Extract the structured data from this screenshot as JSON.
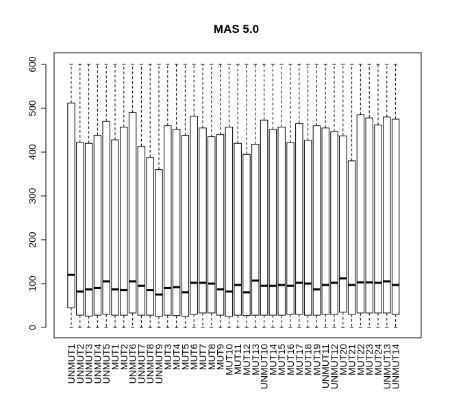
{
  "chart_data": {
    "type": "boxplot",
    "title": "MAS 5.0",
    "xlabel": "",
    "ylabel": "",
    "ylim": [
      0,
      600
    ],
    "yticks": [
      0,
      100,
      200,
      300,
      400,
      500,
      600
    ],
    "grid": false,
    "legend": "none",
    "categories": [
      "UNMUT1",
      "UNMUT2",
      "UNMUT3",
      "UNMUT4",
      "UNMUT5",
      "MUT1",
      "MUT2",
      "UNMUT6",
      "UNMUT7",
      "UNMUT8",
      "UNMUT9",
      "MUT3",
      "MUT4",
      "MUT5",
      "MUT6",
      "MUT7",
      "MUT8",
      "MUT9",
      "MUT10",
      "MUT11",
      "MUT12",
      "MUT13",
      "UNMUT10",
      "MUT14",
      "MUT15",
      "MUT16",
      "MUT17",
      "MUT18",
      "MUT19",
      "UNMUT11",
      "UNMUT12",
      "MUT20",
      "MUT21",
      "MUT22",
      "MUT23",
      "MUT24",
      "UNMUT13",
      "UNMUT14"
    ],
    "tick_labels": [
      "UNMUT1",
      "UNMUT2",
      "UNMUT3",
      "UNMUT4",
      "UNMUT5",
      "MUT1",
      "MUT2",
      "UNMUT6",
      "UNMUT7",
      "UNMUT8",
      "UNMUT9",
      "MUT3",
      "MUT4",
      "MUT5",
      "MUT6",
      "MUT7",
      "MUT8",
      "MUT9",
      "MUT10",
      "MUT11",
      "MUT12",
      "MUT13",
      "UNMUT10",
      "MUT14",
      "MUT15",
      "MUT16",
      "MUT17",
      "MUT18",
      "MUT19",
      "UNMUT11",
      "UNMUT12",
      "MUT20",
      "MUT21",
      "MUT22",
      "MUT23",
      "MUT24",
      "UNMUT13",
      "UNMUT14"
    ],
    "q1": [
      45,
      28,
      26,
      28,
      30,
      28,
      28,
      33,
      28,
      28,
      25,
      28,
      27,
      25,
      30,
      33,
      33,
      28,
      25,
      28,
      27,
      28,
      28,
      28,
      28,
      30,
      30,
      28,
      28,
      30,
      30,
      35,
      30,
      33,
      33,
      33,
      33,
      30
    ],
    "median": [
      120,
      82,
      87,
      90,
      105,
      87,
      85,
      105,
      95,
      85,
      75,
      90,
      92,
      80,
      102,
      102,
      100,
      87,
      82,
      97,
      80,
      107,
      95,
      95,
      97,
      95,
      102,
      100,
      87,
      97,
      102,
      112,
      97,
      103,
      103,
      102,
      105,
      97
    ],
    "q3": [
      512,
      422,
      420,
      438,
      470,
      428,
      457,
      490,
      413,
      388,
      360,
      460,
      452,
      438,
      482,
      455,
      435,
      440,
      457,
      420,
      395,
      418,
      473,
      452,
      457,
      422,
      465,
      427,
      460,
      455,
      447,
      437,
      380,
      485,
      478,
      462,
      480,
      475
    ],
    "whisker_low": [
      0,
      0,
      0,
      0,
      0,
      0,
      0,
      0,
      0,
      0,
      0,
      0,
      0,
      0,
      0,
      0,
      0,
      0,
      0,
      0,
      0,
      0,
      0,
      0,
      0,
      0,
      0,
      0,
      0,
      0,
      0,
      0,
      0,
      0,
      0,
      0,
      0,
      0
    ],
    "whisker_high": [
      600,
      600,
      600,
      600,
      600,
      600,
      600,
      600,
      600,
      600,
      600,
      600,
      600,
      600,
      600,
      600,
      600,
      600,
      600,
      600,
      600,
      600,
      600,
      600,
      600,
      600,
      600,
      600,
      600,
      600,
      600,
      600,
      600,
      600,
      600,
      600,
      600,
      600
    ]
  }
}
